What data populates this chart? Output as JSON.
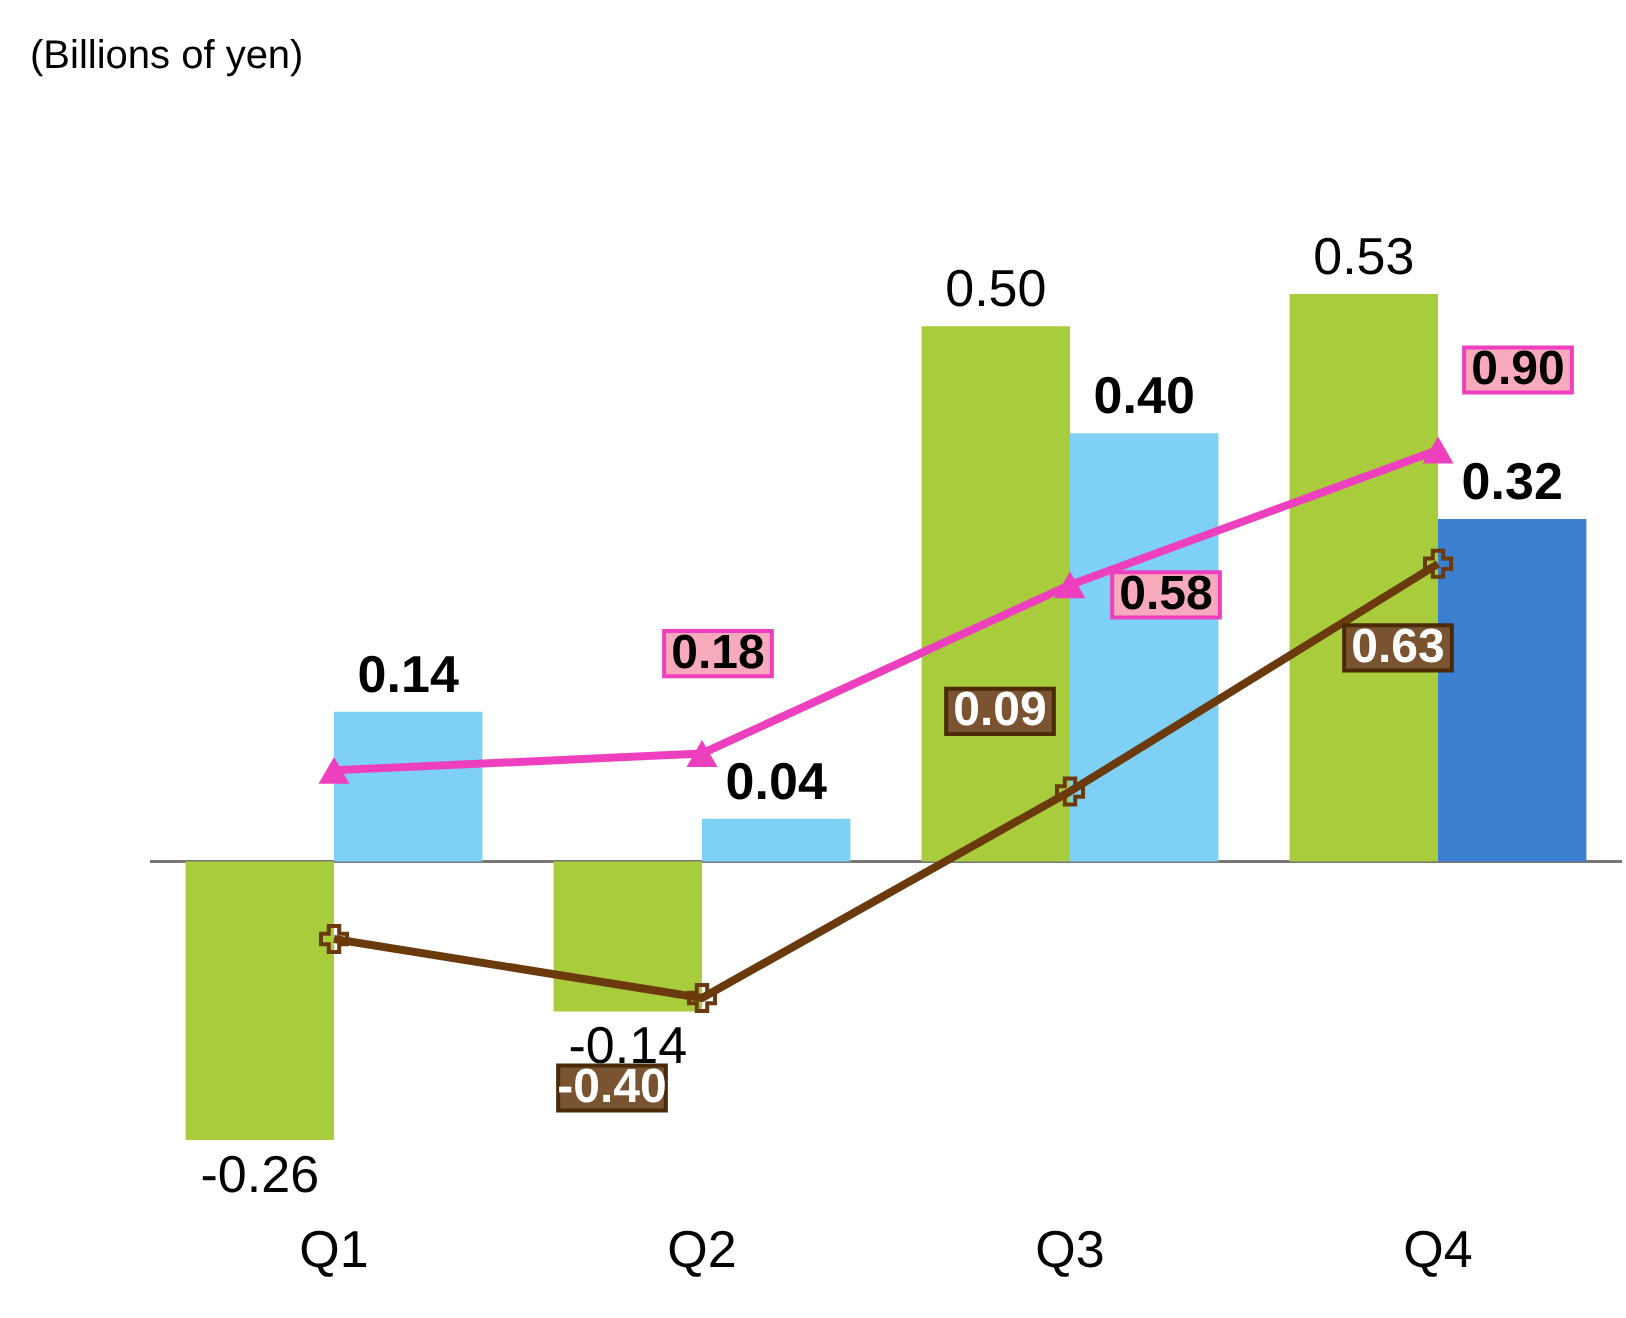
{
  "chart_data": {
    "type": "bar",
    "annotations": [
      "(Billions of yen)"
    ],
    "categories": [
      "Q1",
      "Q2",
      "Q3",
      "Q4"
    ],
    "series": [
      {
        "color": "#a8cc3c",
        "values": [
          -0.26,
          -0.14,
          0.5,
          0.53
        ],
        "value_labels": [
          "-0.26",
          "-0.14",
          "0.50",
          "0.53"
        ]
      },
      {
        "colors": [
          "#7fd0f5",
          "#7fd0f5",
          "#7fd0f5",
          "#3a7fd0"
        ],
        "values": [
          0.14,
          0.04,
          0.4,
          0.32
        ],
        "value_labels": [
          "0.14",
          "0.04",
          "0.40",
          "0.32"
        ]
      },
      {
        "type": "line",
        "axis": "y2",
        "color": "#ee3fbf",
        "marker": "triangle",
        "line_style": "solid",
        "values": [
          0.14,
          0.18,
          0.58,
          0.9
        ],
        "value_labels": [
          null,
          "0.18",
          "0.58",
          "0.90"
        ]
      },
      {
        "type": "line",
        "axis": "y2",
        "color": "#6b3a0c",
        "marker": "cross",
        "line_style": "solid",
        "values": [
          -0.26,
          -0.4,
          0.09,
          0.63
        ],
        "value_labels": [
          null,
          "-0.40",
          "0.09",
          "0.63"
        ]
      }
    ],
    "tick_labels": "x",
    "grid": false
  }
}
